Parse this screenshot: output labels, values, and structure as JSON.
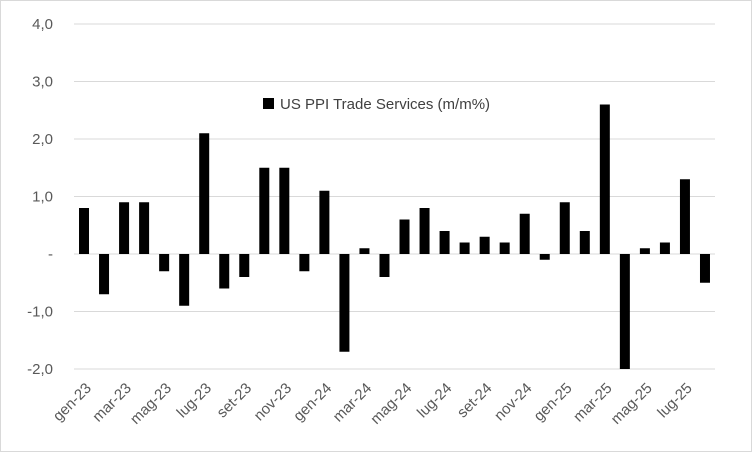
{
  "chart_data": {
    "type": "bar",
    "legend": "US PPI Trade Services (m/m%)",
    "legend_position": "top-center",
    "grid": true,
    "bar_color": "#000000",
    "gridline_color": "#d9d9d9",
    "ylim": [
      -2.0,
      4.0
    ],
    "y_ticks": [
      {
        "value": 4.0,
        "label": "4,0"
      },
      {
        "value": 3.0,
        "label": "3,0"
      },
      {
        "value": 2.0,
        "label": "2,0"
      },
      {
        "value": 1.0,
        "label": "1,0"
      },
      {
        "value": 0.0,
        "label": "-"
      },
      {
        "value": -1.0,
        "label": "-1,0"
      },
      {
        "value": -2.0,
        "label": "-2,0"
      }
    ],
    "categories": [
      "gen-23",
      "feb-23",
      "mar-23",
      "apr-23",
      "mag-23",
      "giu-23",
      "lug-23",
      "ago-23",
      "set-23",
      "ott-23",
      "nov-23",
      "dic-23",
      "gen-24",
      "feb-24",
      "mar-24",
      "apr-24",
      "mag-24",
      "giu-24",
      "lug-24",
      "ago-24",
      "set-24",
      "ott-24",
      "nov-24",
      "dic-24",
      "gen-25",
      "feb-25",
      "mar-25",
      "apr-25",
      "mag-25",
      "giu-25",
      "lug-25",
      "ago-25"
    ],
    "x_tick_labels": [
      "gen-23",
      "mar-23",
      "mag-23",
      "lug-23",
      "set-23",
      "nov-23",
      "gen-24",
      "mar-24",
      "mag-24",
      "lug-24",
      "set-24",
      "nov-24",
      "gen-25",
      "mar-25",
      "mag-25",
      "lug-25"
    ],
    "values": [
      0.8,
      -0.7,
      0.9,
      0.9,
      -0.3,
      -0.9,
      2.1,
      -0.6,
      -0.4,
      1.5,
      1.5,
      -0.3,
      1.1,
      -1.7,
      0.1,
      -0.4,
      0.6,
      0.8,
      0.4,
      0.2,
      0.3,
      0.2,
      0.7,
      -0.1,
      0.9,
      0.4,
      2.6,
      -2.0,
      0.1,
      0.2,
      1.3,
      -0.5
    ]
  }
}
